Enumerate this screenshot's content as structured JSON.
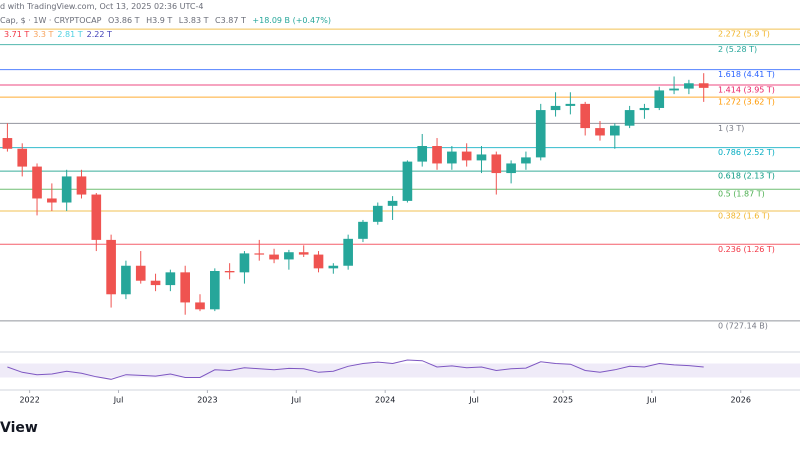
{
  "header": {
    "source": "d with TradingView.com, Oct 13, 2025 02:36 UTC-4",
    "symbol": "Cap, $ · 1W · CRYPTOCAP",
    "ohlc": [
      "O3.86 T",
      "H3.9 T",
      "L3.83 T",
      "C3.87 T"
    ],
    "change": "+18.09 B (+0.47%)",
    "ma_labels": [
      {
        "label": "3.71 T",
        "color": "#f23645"
      },
      {
        "label": "3.3 T",
        "color": "#f7a35c"
      },
      {
        "label": "2.81 T",
        "color": "#4dd0e1"
      },
      {
        "label": "2.22 T",
        "color": "#3f3fb8"
      }
    ]
  },
  "chart_data": {
    "type": "candlestick",
    "log_scale": true,
    "x": [
      "2021-11",
      "2021-12",
      "2022-01",
      "2022-02",
      "2022-03",
      "2022-04",
      "2022-05",
      "2022-06",
      "2022-07",
      "2022-08",
      "2022-09",
      "2022-10",
      "2022-11",
      "2022-12",
      "2023-01",
      "2023-02",
      "2023-03",
      "2023-04",
      "2023-05",
      "2023-06",
      "2023-07",
      "2023-08",
      "2023-09",
      "2023-10",
      "2023-11",
      "2023-12",
      "2024-01",
      "2024-02",
      "2024-03",
      "2024-04",
      "2024-05",
      "2024-06",
      "2024-07",
      "2024-08",
      "2024-09",
      "2024-10",
      "2024-11",
      "2024-12",
      "2025-01",
      "2025-02",
      "2025-03",
      "2025-04",
      "2025-05",
      "2025-06",
      "2025-07",
      "2025-08",
      "2025-09",
      "2025-10"
    ],
    "open": [
      2.7,
      2.5,
      2.2,
      1.75,
      1.7,
      2.05,
      1.8,
      1.3,
      0.88,
      1.08,
      0.97,
      0.94,
      1.03,
      0.83,
      0.79,
      1.04,
      1.03,
      1.18,
      1.17,
      1.13,
      1.19,
      1.17,
      1.06,
      1.08,
      1.31,
      1.48,
      1.66,
      1.72,
      2.28,
      2.55,
      2.25,
      2.45,
      2.3,
      2.4,
      2.1,
      2.25,
      2.35,
      3.3,
      3.4,
      3.45,
      2.9,
      2.75,
      2.95,
      3.3,
      3.35,
      3.8,
      3.85,
      4.0
    ],
    "high": [
      3.0,
      2.6,
      2.25,
      1.95,
      2.15,
      2.15,
      1.82,
      1.35,
      1.12,
      1.2,
      1.02,
      1.05,
      1.08,
      0.88,
      1.06,
      1.1,
      1.2,
      1.3,
      1.22,
      1.21,
      1.25,
      1.2,
      1.1,
      1.35,
      1.5,
      1.7,
      1.78,
      2.3,
      2.78,
      2.7,
      2.55,
      2.6,
      2.55,
      2.45,
      2.3,
      2.45,
      3.45,
      3.75,
      3.75,
      3.5,
      3.05,
      3.0,
      3.4,
      3.45,
      3.9,
      4.2,
      4.1,
      4.3
    ],
    "low": [
      2.45,
      2.05,
      1.55,
      1.6,
      1.6,
      1.75,
      1.2,
      0.8,
      0.85,
      0.95,
      0.9,
      0.9,
      0.76,
      0.78,
      0.78,
      0.98,
      0.95,
      1.12,
      1.1,
      1.05,
      1.15,
      1.03,
      1.02,
      1.05,
      1.28,
      1.45,
      1.5,
      1.7,
      2.2,
      2.15,
      2.15,
      2.2,
      2.1,
      1.8,
      1.95,
      2.15,
      2.3,
      3.15,
      3.2,
      2.75,
      2.65,
      2.5,
      2.9,
      3.1,
      3.3,
      3.7,
      3.7,
      3.5
    ],
    "close": [
      2.5,
      2.2,
      1.75,
      1.7,
      2.05,
      1.8,
      1.3,
      0.88,
      1.08,
      0.97,
      0.94,
      1.03,
      0.83,
      0.79,
      1.04,
      1.03,
      1.18,
      1.17,
      1.13,
      1.19,
      1.17,
      1.06,
      1.08,
      1.31,
      1.48,
      1.66,
      1.72,
      2.28,
      2.55,
      2.25,
      2.45,
      2.3,
      2.4,
      2.1,
      2.25,
      2.35,
      3.3,
      3.4,
      3.45,
      2.9,
      2.75,
      2.95,
      3.3,
      3.35,
      3.8,
      3.85,
      4.0,
      3.87
    ],
    "up_color": "#26a69a",
    "down_color": "#ef5350",
    "ylim": [
      0.59,
      7.27
    ],
    "xlim": [
      "2021-11",
      "2026-05"
    ],
    "xticks": [
      {
        "value": "2022-01",
        "label": "2022"
      },
      {
        "value": "2022-07",
        "label": "Jul"
      },
      {
        "value": "2023-01",
        "label": "2023"
      },
      {
        "value": "2023-07",
        "label": "Jul"
      },
      {
        "value": "2024-01",
        "label": "2024"
      },
      {
        "value": "2024-07",
        "label": "Jul"
      },
      {
        "value": "2025-01",
        "label": "2025"
      },
      {
        "value": "2025-07",
        "label": "Jul"
      },
      {
        "value": "2026-01",
        "label": "2026"
      }
    ],
    "levels": [
      {
        "value": 5.9,
        "label": "2.272 (5.9 T)",
        "color": "#f0b429"
      },
      {
        "value": 5.28,
        "label": "2 (5.28 T)",
        "color": "#26a69a"
      },
      {
        "value": 4.41,
        "label": "1.618 (4.41 T)",
        "color": "#2962ff"
      },
      {
        "value": 3.95,
        "label": "1.414 (3.95 T)",
        "color": "#e91e63"
      },
      {
        "value": 3.62,
        "label": "1.272 (3.62 T)",
        "color": "#ff9800"
      },
      {
        "value": 3,
        "label": "1 (3 T)",
        "color": "#787b86"
      },
      {
        "value": 2.52,
        "label": "0.786 (2.52 T)",
        "color": "#00acc1"
      },
      {
        "value": 2.13,
        "label": "0.618 (2.13 T)",
        "color": "#089981"
      },
      {
        "value": 1.87,
        "label": "0.5 (1.87 T)",
        "color": "#4caf50"
      },
      {
        "value": 1.6,
        "label": "0.382 (1.6 T)",
        "color": "#f0b429"
      },
      {
        "value": 1.26,
        "label": "0.236 (1.26 T)",
        "color": "#f23645"
      },
      {
        "value": 0.72714,
        "label": "0 (727.14 B)",
        "color": "#787b86"
      }
    ],
    "rsi": [
      60,
      45,
      38,
      40,
      48,
      42,
      32,
      25,
      38,
      36,
      34,
      40,
      30,
      30,
      52,
      50,
      58,
      55,
      52,
      56,
      55,
      45,
      48,
      62,
      70,
      74,
      70,
      80,
      78,
      60,
      63,
      58,
      60,
      50,
      55,
      57,
      75,
      70,
      68,
      50,
      45,
      52,
      62,
      60,
      70,
      66,
      64,
      60
    ],
    "rsi_lim": [
      0,
      100
    ],
    "rsi_band": [
      30,
      70
    ],
    "rsi_color": "#7e57c2"
  },
  "footer": "View"
}
